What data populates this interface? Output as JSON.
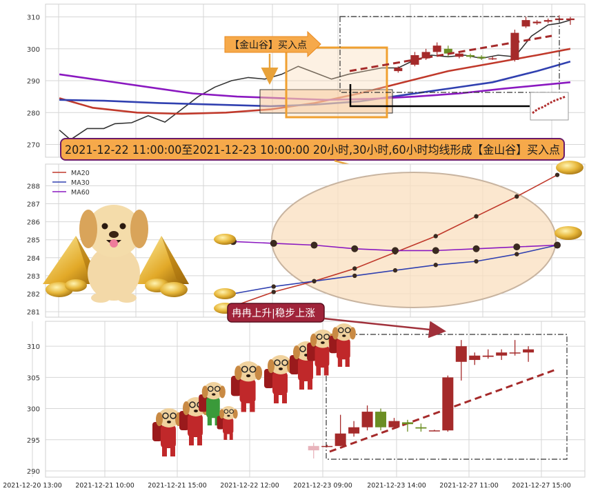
{
  "colors": {
    "up": "#a52a2a",
    "down": "#6b8e23",
    "ma20": "#c0392b",
    "ma30": "#3040b0",
    "ma60": "#8a18c0",
    "price": "#333333",
    "grid": "#d6d6d6",
    "callout_fill": "#f6a94a",
    "callout_border": "#6a1a6a",
    "accent_orange": "#f0a030",
    "bubble_fill": "#a0243a"
  },
  "annotations": {
    "buy_point_label": "【金山谷】买入点",
    "main_callout": "2021-12-22 11:00:00至2021-12-23 10:00:00 20小时,30小时,60小时均线形成【金山谷】买入点",
    "trend_bubble": "冉冉上升|稳步上涨"
  },
  "decorations": {
    "dog_icon": "puppy-mascot-icon",
    "ingot_icon": "gold-ingot-icon",
    "pyramid_icon": "gold-pyramid-icon",
    "walking_dog_icon": "backpack-puppy-icon"
  },
  "chart_data": [
    {
      "type": "line",
      "panel": "overview",
      "ylim": [
        266,
        314
      ],
      "yticks": [
        270,
        280,
        290,
        300,
        310
      ],
      "x_count": 95,
      "series": [
        {
          "name": "price",
          "color": "#333333",
          "points": [
            [
              2,
              274.5
            ],
            [
              4,
              271.5
            ],
            [
              7,
              275
            ],
            [
              10,
              275
            ],
            [
              12,
              276.5
            ],
            [
              15,
              276.8
            ],
            [
              18,
              279
            ],
            [
              21,
              277
            ],
            [
              24,
              281
            ],
            [
              27,
              285
            ],
            [
              30,
              288
            ],
            [
              33,
              290
            ],
            [
              36,
              291
            ],
            [
              39,
              290.5
            ],
            [
              42,
              292
            ],
            [
              45,
              294.5
            ],
            [
              48,
              292.5
            ],
            [
              51,
              290.5
            ],
            [
              54,
              292
            ],
            [
              57,
              293
            ],
            [
              60,
              294
            ],
            [
              63,
              294
            ],
            [
              66,
              296.5
            ],
            [
              69,
              298
            ],
            [
              72,
              297.5
            ],
            [
              75,
              298
            ],
            [
              78,
              297
            ],
            [
              81,
              298
            ],
            [
              84,
              297.5
            ],
            [
              87,
              304
            ],
            [
              90,
              307.5
            ],
            [
              92,
              308
            ],
            [
              94,
              309
            ]
          ]
        },
        {
          "name": "MA20",
          "color": "#c0392b",
          "points": [
            [
              2,
              284.5
            ],
            [
              8,
              281.5
            ],
            [
              16,
              280
            ],
            [
              24,
              279.6
            ],
            [
              32,
              280
            ],
            [
              40,
              281
            ],
            [
              48,
              283
            ],
            [
              56,
              286
            ],
            [
              64,
              289.5
            ],
            [
              72,
              293
            ],
            [
              80,
              295.5
            ],
            [
              88,
              298
            ],
            [
              94,
              300
            ]
          ]
        },
        {
          "name": "MA30",
          "color": "#3040b0",
          "points": [
            [
              2,
              284
            ],
            [
              10,
              283.7
            ],
            [
              20,
              283
            ],
            [
              30,
              282.5
            ],
            [
              40,
              282
            ],
            [
              48,
              282.5
            ],
            [
              56,
              283.5
            ],
            [
              64,
              285.5
            ],
            [
              72,
              287.5
            ],
            [
              80,
              289.5
            ],
            [
              88,
              293
            ],
            [
              94,
              296
            ]
          ]
        },
        {
          "name": "MA60",
          "color": "#8a18c0",
          "points": [
            [
              2,
              292
            ],
            [
              10,
              290
            ],
            [
              18,
              288
            ],
            [
              26,
              286
            ],
            [
              34,
              285
            ],
            [
              42,
              284.5
            ],
            [
              50,
              284
            ],
            [
              58,
              284.3
            ],
            [
              66,
              285
            ],
            [
              74,
              286
            ],
            [
              82,
              287.5
            ],
            [
              88,
              288.5
            ],
            [
              94,
              289.5
            ]
          ]
        }
      ],
      "candles": [
        {
          "x": 63,
          "o": 293,
          "c": 294,
          "h": 294.5,
          "l": 292.5
        },
        {
          "x": 66,
          "o": 295,
          "c": 298,
          "h": 299,
          "l": 294.5
        },
        {
          "x": 68,
          "o": 297,
          "c": 299,
          "h": 300,
          "l": 296.5
        },
        {
          "x": 70,
          "o": 299,
          "c": 301,
          "h": 302,
          "l": 298
        },
        {
          "x": 72,
          "o": 300,
          "c": 298.5,
          "h": 301,
          "l": 297.5
        },
        {
          "x": 74,
          "o": 297.5,
          "c": 298.5,
          "h": 299,
          "l": 297
        },
        {
          "x": 76,
          "o": 298,
          "c": 297.5,
          "h": 298.5,
          "l": 297
        },
        {
          "x": 78,
          "o": 297.5,
          "c": 297,
          "h": 298,
          "l": 296.5
        },
        {
          "x": 80,
          "o": 297,
          "c": 297,
          "h": 297.5,
          "l": 296.5
        },
        {
          "x": 84,
          "o": 296.5,
          "c": 305,
          "h": 306,
          "l": 296
        },
        {
          "x": 86,
          "o": 307,
          "c": 309,
          "h": 310,
          "l": 306.5
        },
        {
          "x": 88,
          "o": 308,
          "c": 308.5,
          "h": 309,
          "l": 307.5
        },
        {
          "x": 90,
          "o": 308.5,
          "c": 309,
          "h": 309.5,
          "l": 308
        },
        {
          "x": 92,
          "o": 309,
          "c": 309.5,
          "h": 310.5,
          "l": 308.5
        },
        {
          "x": 94,
          "o": 309,
          "c": 309.5,
          "h": 310,
          "l": 307.5
        }
      ]
    },
    {
      "type": "line",
      "panel": "moving-average-detail",
      "ylim": [
        280.7,
        289.2
      ],
      "yticks": [
        281,
        282,
        283,
        284,
        285,
        286,
        287,
        288
      ],
      "x": [
        0,
        1,
        2,
        3,
        4,
        5,
        6,
        7,
        8
      ],
      "legend": [
        "MA20",
        "MA30",
        "MA60"
      ],
      "legend_position": "top-left",
      "series": [
        {
          "name": "MA20",
          "color": "#c0392b",
          "values": [
            281.3,
            282.1,
            282.7,
            283.4,
            284.3,
            285.2,
            286.3,
            287.4,
            288.6
          ]
        },
        {
          "name": "MA30",
          "color": "#3040b0",
          "values": [
            282.0,
            282.4,
            282.7,
            283.0,
            283.3,
            283.6,
            283.8,
            284.2,
            284.7
          ]
        },
        {
          "name": "MA60",
          "color": "#8a18c0",
          "values": [
            284.9,
            284.8,
            284.7,
            284.5,
            284.4,
            284.4,
            284.5,
            284.6,
            284.7
          ]
        }
      ]
    },
    {
      "type": "candlestick",
      "panel": "price-detail",
      "ylim": [
        289,
        314
      ],
      "yticks": [
        290,
        295,
        300,
        305,
        310
      ],
      "x_count": 38,
      "x_tick_labels": [
        "2021-12-20 13:00",
        "2021-12-21 10:00",
        "2021-12-21 15:00",
        "2021-12-22 12:00",
        "2021-12-23 09:00",
        "2021-12-23 14:00",
        "2021-12-27 11:00",
        "2021-12-27 15:00"
      ],
      "candles": [
        {
          "x": 19,
          "o": 294,
          "c": 293.3,
          "h": 294.5,
          "l": 292
        },
        {
          "x": 20,
          "o": 294,
          "c": 294,
          "h": 294.2,
          "l": 293.8
        },
        {
          "x": 21,
          "o": 294,
          "c": 296,
          "h": 299,
          "l": 294
        },
        {
          "x": 22,
          "o": 296,
          "c": 297,
          "h": 298,
          "l": 295.5
        },
        {
          "x": 23,
          "o": 297,
          "c": 299.5,
          "h": 300.5,
          "l": 296.5
        },
        {
          "x": 24,
          "o": 299.5,
          "c": 297,
          "h": 300,
          "l": 296.5
        },
        {
          "x": 25,
          "o": 297,
          "c": 298,
          "h": 298.5,
          "l": 296.8
        },
        {
          "x": 26,
          "o": 297.8,
          "c": 297.5,
          "h": 298.2,
          "l": 296.3
        },
        {
          "x": 27,
          "o": 297,
          "c": 296.8,
          "h": 297.6,
          "l": 296.3
        },
        {
          "x": 28,
          "o": 296.5,
          "c": 296.5,
          "h": 296.6,
          "l": 296.4
        },
        {
          "x": 29,
          "o": 296.5,
          "c": 305,
          "h": 305.3,
          "l": 296.3
        },
        {
          "x": 30,
          "o": 307.5,
          "c": 310,
          "h": 311,
          "l": 304.5
        },
        {
          "x": 31,
          "o": 307.8,
          "c": 308.5,
          "h": 309,
          "l": 307
        },
        {
          "x": 32,
          "o": 308.3,
          "c": 308.5,
          "h": 309.5,
          "l": 308
        },
        {
          "x": 33,
          "o": 308.5,
          "c": 309,
          "h": 309.5,
          "l": 307.8
        },
        {
          "x": 34,
          "o": 309,
          "c": 309,
          "h": 311,
          "l": 308.5
        },
        {
          "x": 35,
          "o": 309,
          "c": 309.5,
          "h": 310,
          "l": 307.5
        }
      ]
    }
  ]
}
